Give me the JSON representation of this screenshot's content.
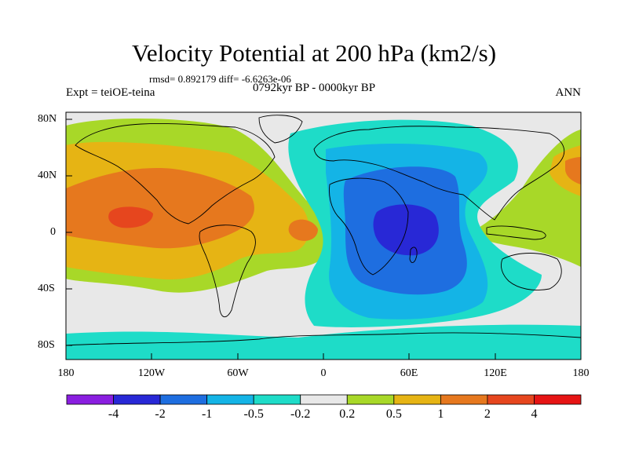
{
  "title": "Velocity Potential at 200 hPa (km2/s)",
  "stats": "rmsd= 0.892179 diff= -6.6263e-06",
  "experiment": "Expt = teiOE-teina",
  "period": "0792kyr BP - 0000kyr BP",
  "season": "ANN",
  "lat_labels": [
    "80N",
    "40N",
    "0",
    "40S",
    "80S"
  ],
  "lon_labels": [
    "180",
    "120W",
    "60W",
    "0",
    "60E",
    "120E",
    "180"
  ],
  "colorbar": {
    "labels": [
      "-4",
      "-2",
      "-1",
      "-0.5",
      "-0.2",
      "0.2",
      "0.5",
      "1",
      "2",
      "4"
    ],
    "colors": [
      "#8a1ee0",
      "#2828d6",
      "#1e6ee0",
      "#14b4e6",
      "#1edcc8",
      "#e8e8e8",
      "#a8d828",
      "#e6b414",
      "#e6781e",
      "#e6461e",
      "#e61414"
    ]
  },
  "colors": {
    "neutral": "#e8e8e8",
    "pos_weak": "#a8d828",
    "pos_mid": "#e6b414",
    "pos_strong": "#e6781e",
    "pos_max": "#e6461e",
    "neg_weak": "#1edcc8",
    "neg_mid": "#14b4e6",
    "neg_strong": "#1e6ee0",
    "neg_max": "#2828d6"
  }
}
